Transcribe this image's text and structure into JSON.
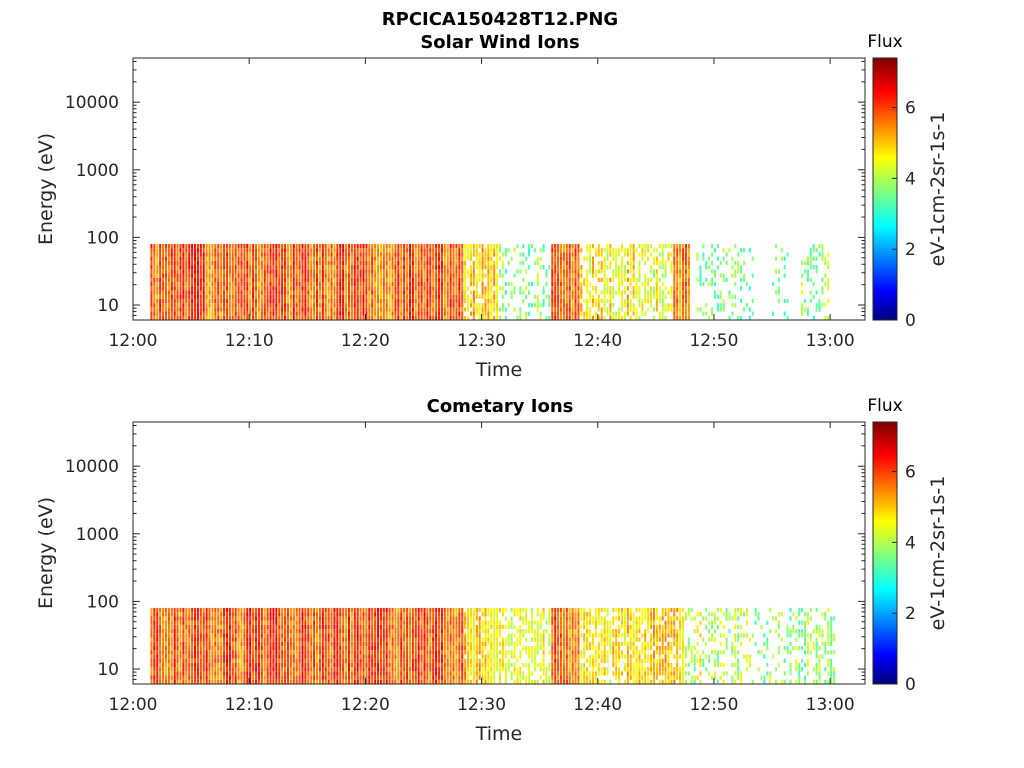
{
  "figure": {
    "title": "RPCICA150428T12.PNG"
  },
  "colormap": {
    "name": "jet",
    "stops": [
      "#00007f",
      "#0000ff",
      "#00ffff",
      "#ffff00",
      "#ff0000",
      "#7f0000"
    ]
  },
  "chart_data": [
    {
      "type": "heatmap",
      "title": "Solar Wind Ions",
      "xlabel": "Time",
      "ylabel": "Energy (eV)",
      "x_ticks": [
        "12:00",
        "12:10",
        "12:20",
        "12:30",
        "12:40",
        "12:50",
        "13:00"
      ],
      "x_tick_minutes": [
        0,
        10,
        20,
        30,
        40,
        50,
        60
      ],
      "xlim_minutes": [
        0,
        63
      ],
      "y_ticks": [
        "10",
        "100",
        "1000",
        "10000"
      ],
      "y_tick_values": [
        10,
        100,
        1000,
        10000
      ],
      "ylim": [
        6,
        45000
      ],
      "y_scale": "log",
      "colorbar": {
        "title": "Flux",
        "label": "eV-1cm-2sr-1s-1",
        "ticks": [
          "0",
          "2",
          "4",
          "6"
        ],
        "tick_values": [
          0,
          2,
          4,
          6
        ],
        "range": [
          0,
          7.4
        ]
      },
      "energy_range_eV": [
        6,
        80
      ],
      "segments": [
        {
          "start_min": 1.5,
          "end_min": 28.5,
          "flux": 5.8,
          "coverage": 1.0
        },
        {
          "start_min": 28.5,
          "end_min": 31.5,
          "flux": 5.0,
          "coverage": 0.85
        },
        {
          "start_min": 31.5,
          "end_min": 36.0,
          "flux": 3.8,
          "coverage": 0.35
        },
        {
          "start_min": 36.0,
          "end_min": 38.5,
          "flux": 5.6,
          "coverage": 1.0
        },
        {
          "start_min": 38.5,
          "end_min": 42.5,
          "flux": 4.6,
          "coverage": 0.6
        },
        {
          "start_min": 42.5,
          "end_min": 43.5,
          "flux": 4.8,
          "coverage": 0.8
        },
        {
          "start_min": 43.5,
          "end_min": 46.5,
          "flux": 4.4,
          "coverage": 0.6
        },
        {
          "start_min": 46.5,
          "end_min": 48.0,
          "flux": 5.4,
          "coverage": 1.0
        },
        {
          "start_min": 48.5,
          "end_min": 53.5,
          "flux": 3.8,
          "coverage": 0.25
        },
        {
          "start_min": 55.0,
          "end_min": 56.5,
          "flux": 3.5,
          "coverage": 0.2
        },
        {
          "start_min": 57.5,
          "end_min": 60.0,
          "flux": 3.8,
          "coverage": 0.35
        }
      ]
    },
    {
      "type": "heatmap",
      "title": "Cometary Ions",
      "xlabel": "Time",
      "ylabel": "Energy (eV)",
      "x_ticks": [
        "12:00",
        "12:10",
        "12:20",
        "12:30",
        "12:40",
        "12:50",
        "13:00"
      ],
      "x_tick_minutes": [
        0,
        10,
        20,
        30,
        40,
        50,
        60
      ],
      "xlim_minutes": [
        0,
        63
      ],
      "y_ticks": [
        "10",
        "100",
        "1000",
        "10000"
      ],
      "y_tick_values": [
        10,
        100,
        1000,
        10000
      ],
      "ylim": [
        6,
        45000
      ],
      "y_scale": "log",
      "colorbar": {
        "title": "Flux",
        "label": "eV-1cm-2sr-1s-1",
        "ticks": [
          "0",
          "2",
          "4",
          "6"
        ],
        "tick_values": [
          0,
          2,
          4,
          6
        ],
        "range": [
          0,
          7.4
        ]
      },
      "energy_range_eV": [
        6,
        80
      ],
      "segments": [
        {
          "start_min": 1.5,
          "end_min": 28.5,
          "flux": 5.9,
          "coverage": 1.0
        },
        {
          "start_min": 28.5,
          "end_min": 31.5,
          "flux": 5.0,
          "coverage": 0.9
        },
        {
          "start_min": 31.5,
          "end_min": 36.0,
          "flux": 4.4,
          "coverage": 0.6
        },
        {
          "start_min": 36.0,
          "end_min": 38.5,
          "flux": 5.7,
          "coverage": 1.0
        },
        {
          "start_min": 38.5,
          "end_min": 42.5,
          "flux": 4.8,
          "coverage": 0.75
        },
        {
          "start_min": 42.5,
          "end_min": 47.5,
          "flux": 5.0,
          "coverage": 0.85
        },
        {
          "start_min": 47.5,
          "end_min": 53.0,
          "flux": 4.2,
          "coverage": 0.4
        },
        {
          "start_min": 53.0,
          "end_min": 56.5,
          "flux": 3.8,
          "coverage": 0.25
        },
        {
          "start_min": 56.5,
          "end_min": 60.5,
          "flux": 4.0,
          "coverage": 0.45
        }
      ]
    }
  ]
}
